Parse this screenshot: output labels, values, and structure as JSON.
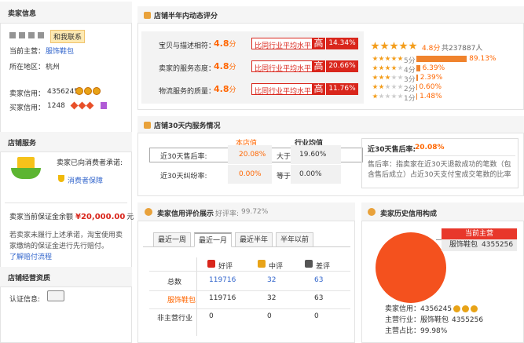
{
  "seller_info": {
    "title": "卖家信息",
    "contact": "和我联系",
    "main_label": "当前主营：",
    "main_value": "服饰鞋包",
    "region_label": "所在地区：",
    "region_value": "杭州",
    "seller_credit_label": "卖家信用：",
    "seller_credit_value": "4356245",
    "buyer_credit_label": "买家信用：",
    "buyer_credit_value": "1248"
  },
  "shop_service": {
    "title": "店铺服务",
    "promise": "卖家已向消费者承诺:",
    "guarantee": "消费者保障",
    "deposit_label": "卖家当前保证金余额",
    "deposit_value": "¥20,000.00",
    "deposit_unit": "元",
    "note": "若卖家未履行上述承诺，淘宝使用卖家缴纳的保证金进行先行赔付。",
    "note_link": "了解赔付流程"
  },
  "qualification": {
    "title": "店铺经营资质",
    "cert_label": "认证信息:"
  },
  "dsr": {
    "title": "店铺半年内动态评分",
    "rows": [
      {
        "label": "宝贝与描述相符：",
        "score": "4.8",
        "unit": "分",
        "compare": "比同行业平均水平",
        "level": "高",
        "diff": "14.34%"
      },
      {
        "label": "卖家的服务态度：",
        "score": "4.8",
        "unit": "分",
        "compare": "比同行业平均水平",
        "level": "高",
        "diff": "20.66%"
      },
      {
        "label": "物流服务的质量：",
        "score": "4.8",
        "unit": "分",
        "compare": "比同行业平均水平",
        "level": "高",
        "diff": "11.76%"
      }
    ],
    "overall_score": "4.8分",
    "overall_count": "共237887人",
    "distribution": [
      {
        "label": "5分",
        "pct": "89.13%"
      },
      {
        "label": "4分",
        "pct": "6.39%"
      },
      {
        "label": "3分",
        "pct": "2.39%"
      },
      {
        "label": "2分",
        "pct": "0.60%"
      },
      {
        "label": "1分",
        "pct": "1.48%"
      }
    ]
  },
  "service30": {
    "title": "店铺30天内服务情况",
    "col_shop": "本店值",
    "col_industry": "行业均值",
    "rows": [
      {
        "label": "近30天售后率:",
        "shop": "20.08%",
        "relation": "大于",
        "industry": "19.60%"
      },
      {
        "label": "近30天纠纷率:",
        "shop": "0.00%",
        "relation": "等于",
        "industry": "0.00%"
      }
    ],
    "detail_label": "近30天售后率:",
    "detail_value": "20.08%",
    "detail_text": "售后率：指卖家在近30天退款成功的笔数（包含售后成立）占近30天支付宝成交笔数的比率"
  },
  "credit_display": {
    "title": "卖家信用评价展示",
    "rate_label": "好评率:",
    "rate_value": "99.72%",
    "tabs": [
      "最近一周",
      "最近一月",
      "最近半年",
      "半年以前"
    ],
    "columns": [
      "好评",
      "中评",
      "差评"
    ],
    "rows": [
      [
        "总数",
        "119716",
        "32",
        "63"
      ],
      [
        "服饰鞋包",
        "119716",
        "32",
        "63"
      ],
      [
        "非主营行业",
        "0",
        "0",
        "0"
      ]
    ]
  },
  "credit_history": {
    "title": "卖家历史信用构成",
    "legend_title": "当前主营",
    "legend_name": "服饰鞋包",
    "legend_value": "4355256",
    "seller_credit_label": "卖家信用：",
    "seller_credit_value": "4356245",
    "industry_label": "主营行业：",
    "industry_name": "服饰鞋包",
    "industry_value": "4355256",
    "share_label": "主营占比：",
    "share_value": "99.98%"
  }
}
